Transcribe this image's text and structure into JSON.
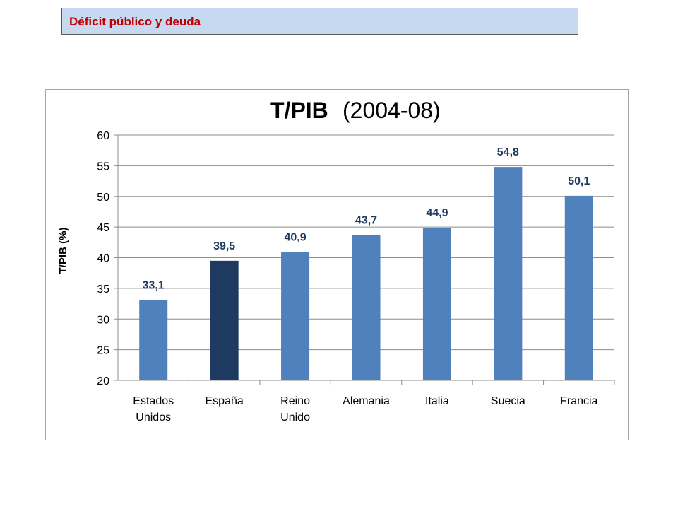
{
  "header": {
    "title": "Déficit público y deuda"
  },
  "chart_data": {
    "type": "bar",
    "title": "T/PIB",
    "subtitle": "(2004-08)",
    "ylabel": "T/PIB (%)",
    "xlabel": "",
    "ylim": [
      20,
      60
    ],
    "yticks": [
      20,
      25,
      30,
      35,
      40,
      45,
      50,
      55,
      60
    ],
    "categories": [
      [
        "Estados",
        "Unidos"
      ],
      [
        "España"
      ],
      [
        "Reino",
        "Unido"
      ],
      [
        "Alemania"
      ],
      [
        "Italia"
      ],
      [
        "Suecia"
      ],
      [
        "Francia"
      ]
    ],
    "values": [
      33.1,
      39.5,
      40.9,
      43.7,
      44.9,
      54.8,
      50.1
    ],
    "value_labels": [
      "33,1",
      "39,5",
      "40,9",
      "43,7",
      "44,9",
      "54,8",
      "50,1"
    ],
    "bar_colors": [
      "#4f81bd",
      "#1f3a60",
      "#4f81bd",
      "#4f81bd",
      "#4f81bd",
      "#4f81bd",
      "#4f81bd"
    ],
    "label_color": "#1f3a60",
    "grid": true,
    "legend": "none"
  }
}
